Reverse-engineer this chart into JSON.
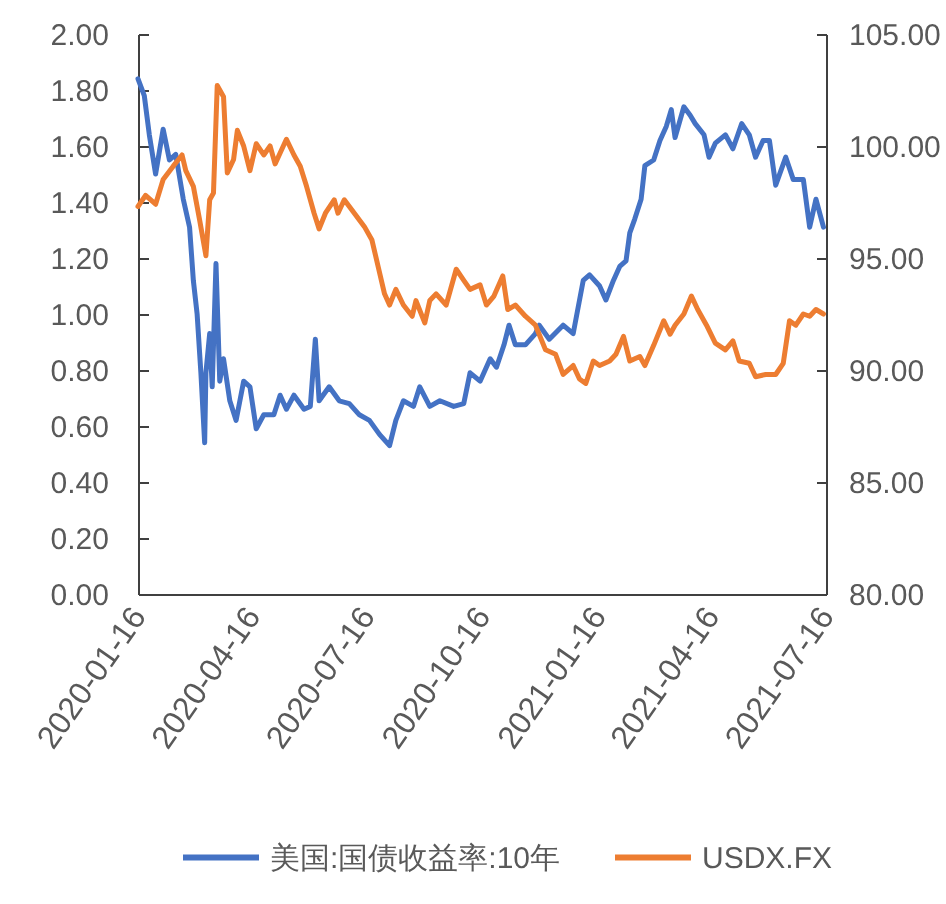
{
  "chart_data": {
    "type": "line",
    "legend": "bottom",
    "xlim": [
      "2020-01-16",
      "2021-07-16"
    ],
    "xticks": [
      "2020-01-16",
      "2020-04-16",
      "2020-07-16",
      "2020-10-16",
      "2021-01-16",
      "2021-04-16",
      "2021-07-16"
    ],
    "ylim": [
      0,
      2
    ],
    "yticks": [
      {
        "value": 0,
        "label": "0.00"
      },
      {
        "value": 0.2,
        "label": "0.20"
      },
      {
        "value": 0.4,
        "label": "0.40"
      },
      {
        "value": 0.6,
        "label": "0.60"
      },
      {
        "value": 0.8,
        "label": "0.80"
      },
      {
        "value": 1,
        "label": "1.00"
      },
      {
        "value": 1.2,
        "label": "1.20"
      },
      {
        "value": 1.4,
        "label": "1.40"
      },
      {
        "value": 1.6,
        "label": "1.60"
      },
      {
        "value": 1.8,
        "label": "1.80"
      },
      {
        "value": 2,
        "label": "2.00"
      }
    ],
    "y2lim": [
      80,
      105
    ],
    "y2ticks": [
      {
        "value": 80,
        "label": "80.00"
      },
      {
        "value": 85,
        "label": "85.00"
      },
      {
        "value": 90,
        "label": "90.00"
      },
      {
        "value": 95,
        "label": "95.00"
      },
      {
        "value": 100,
        "label": "100.00"
      },
      {
        "value": 105,
        "label": "105.00"
      }
    ],
    "series": [
      {
        "name": "美国:国债收益率:10年",
        "color": "#4472c4",
        "x": [
          "2020-01-16",
          "2020-01-21",
          "2020-01-25",
          "2020-01-30",
          "2020-02-05",
          "2020-02-10",
          "2020-02-15",
          "2020-02-21",
          "2020-02-26",
          "2020-02-29",
          "2020-03-03",
          "2020-03-06",
          "2020-03-09",
          "2020-03-10",
          "2020-03-13",
          "2020-03-15",
          "2020-03-18",
          "2020-03-21",
          "2020-03-24",
          "2020-03-29",
          "2020-04-03",
          "2020-04-09",
          "2020-04-14",
          "2020-04-19",
          "2020-04-25",
          "2020-05-03",
          "2020-05-08",
          "2020-05-13",
          "2020-05-19",
          "2020-05-27",
          "2020-06-01",
          "2020-06-05",
          "2020-06-08",
          "2020-06-16",
          "2020-06-24",
          "2020-07-02",
          "2020-07-10",
          "2020-07-18",
          "2020-07-26",
          "2020-08-03",
          "2020-08-08",
          "2020-08-14",
          "2020-08-22",
          "2020-08-27",
          "2020-09-04",
          "2020-09-12",
          "2020-09-23",
          "2020-10-01",
          "2020-10-06",
          "2020-10-14",
          "2020-10-22",
          "2020-10-27",
          "2020-11-02",
          "2020-11-06",
          "2020-11-11",
          "2020-11-19",
          "2020-11-27",
          "2020-11-30",
          "2020-12-08",
          "2020-12-19",
          "2020-12-27",
          "2021-01-04",
          "2021-01-09",
          "2021-01-17",
          "2021-01-22",
          "2021-01-28",
          "2021-02-02",
          "2021-02-07",
          "2021-02-10",
          "2021-02-14",
          "2021-02-19",
          "2021-02-22",
          "2021-03-01",
          "2021-03-06",
          "2021-03-11",
          "2021-03-15",
          "2021-03-18",
          "2021-03-25",
          "2021-03-30",
          "2021-04-03",
          "2021-04-10",
          "2021-04-14",
          "2021-04-19",
          "2021-04-27",
          "2021-05-03",
          "2021-05-10",
          "2021-05-16",
          "2021-05-21",
          "2021-05-27",
          "2021-06-01",
          "2021-06-06",
          "2021-06-14",
          "2021-06-20",
          "2021-06-28",
          "2021-07-03",
          "2021-07-08",
          "2021-07-14"
        ],
        "values": [
          1.84,
          1.78,
          1.64,
          1.5,
          1.66,
          1.55,
          1.57,
          1.41,
          1.31,
          1.12,
          1.0,
          0.79,
          0.54,
          0.79,
          0.93,
          0.74,
          1.18,
          0.76,
          0.84,
          0.69,
          0.62,
          0.76,
          0.74,
          0.59,
          0.64,
          0.64,
          0.71,
          0.66,
          0.71,
          0.66,
          0.67,
          0.91,
          0.69,
          0.74,
          0.69,
          0.68,
          0.64,
          0.62,
          0.57,
          0.53,
          0.62,
          0.69,
          0.67,
          0.74,
          0.67,
          0.69,
          0.67,
          0.68,
          0.79,
          0.76,
          0.84,
          0.81,
          0.89,
          0.96,
          0.89,
          0.89,
          0.93,
          0.96,
          0.91,
          0.96,
          0.93,
          1.12,
          1.14,
          1.1,
          1.05,
          1.12,
          1.17,
          1.19,
          1.29,
          1.34,
          1.41,
          1.53,
          1.55,
          1.62,
          1.67,
          1.73,
          1.63,
          1.74,
          1.71,
          1.68,
          1.64,
          1.56,
          1.61,
          1.64,
          1.59,
          1.68,
          1.64,
          1.56,
          1.62,
          1.62,
          1.46,
          1.56,
          1.48,
          1.48,
          1.31,
          1.41,
          1.31
        ]
      },
      {
        "name": "USDX.FX",
        "color": "#ed7d31",
        "axis": "y2",
        "x": [
          "2020-01-16",
          "2020-01-22",
          "2020-01-30",
          "2020-02-05",
          "2020-02-13",
          "2020-02-20",
          "2020-02-23",
          "2020-02-29",
          "2020-03-05",
          "2020-03-10",
          "2020-03-13",
          "2020-03-16",
          "2020-03-19",
          "2020-03-24",
          "2020-03-27",
          "2020-04-01",
          "2020-04-04",
          "2020-04-09",
          "2020-04-14",
          "2020-04-19",
          "2020-04-25",
          "2020-04-30",
          "2020-05-04",
          "2020-05-13",
          "2020-05-19",
          "2020-05-24",
          "2020-05-29",
          "2020-06-04",
          "2020-06-08",
          "2020-06-13",
          "2020-06-20",
          "2020-06-23",
          "2020-06-28",
          "2020-07-06",
          "2020-07-14",
          "2020-07-20",
          "2020-07-25",
          "2020-07-30",
          "2020-08-03",
          "2020-08-08",
          "2020-08-14",
          "2020-08-21",
          "2020-08-24",
          "2020-08-31",
          "2020-09-04",
          "2020-09-09",
          "2020-09-17",
          "2020-09-25",
          "2020-10-01",
          "2020-10-06",
          "2020-10-14",
          "2020-10-19",
          "2020-10-25",
          "2020-11-01",
          "2020-11-05",
          "2020-11-11",
          "2020-11-19",
          "2020-11-27",
          "2020-12-05",
          "2020-12-13",
          "2020-12-19",
          "2020-12-27",
          "2021-01-01",
          "2021-01-06",
          "2021-01-12",
          "2021-01-17",
          "2021-01-25",
          "2021-01-30",
          "2021-02-05",
          "2021-02-10",
          "2021-02-18",
          "2021-02-22",
          "2021-03-01",
          "2021-03-09",
          "2021-03-14",
          "2021-03-18",
          "2021-03-25",
          "2021-03-31",
          "2021-04-05",
          "2021-04-12",
          "2021-04-19",
          "2021-04-27",
          "2021-05-03",
          "2021-05-08",
          "2021-05-16",
          "2021-05-21",
          "2021-05-29",
          "2021-06-06",
          "2021-06-12",
          "2021-06-17",
          "2021-06-22",
          "2021-06-28",
          "2021-07-03",
          "2021-07-08",
          "2021-07-14"
        ],
        "values": [
          97.3,
          97.8,
          97.4,
          98.5,
          99.1,
          99.6,
          98.9,
          98.2,
          96.7,
          95.1,
          97.6,
          97.9,
          102.7,
          102.2,
          98.8,
          99.4,
          100.7,
          100.0,
          98.9,
          100.1,
          99.6,
          100.0,
          99.2,
          100.3,
          99.6,
          99.1,
          98.2,
          97.0,
          96.3,
          97.0,
          97.6,
          97.0,
          97.6,
          97.0,
          96.4,
          95.8,
          94.6,
          93.4,
          92.9,
          93.6,
          92.9,
          92.4,
          93.1,
          92.1,
          93.1,
          93.4,
          92.9,
          94.5,
          94.0,
          93.6,
          93.8,
          92.9,
          93.3,
          94.2,
          92.7,
          92.9,
          92.4,
          92.0,
          90.9,
          90.7,
          89.8,
          90.2,
          89.6,
          89.4,
          90.4,
          90.2,
          90.4,
          90.7,
          91.5,
          90.4,
          90.6,
          90.2,
          91.1,
          92.2,
          91.6,
          92.0,
          92.5,
          93.3,
          92.7,
          92.0,
          91.2,
          90.9,
          91.3,
          90.4,
          90.3,
          89.7,
          89.8,
          89.8,
          90.3,
          92.2,
          92.0,
          92.5,
          92.4,
          92.7,
          92.5
        ]
      }
    ]
  }
}
